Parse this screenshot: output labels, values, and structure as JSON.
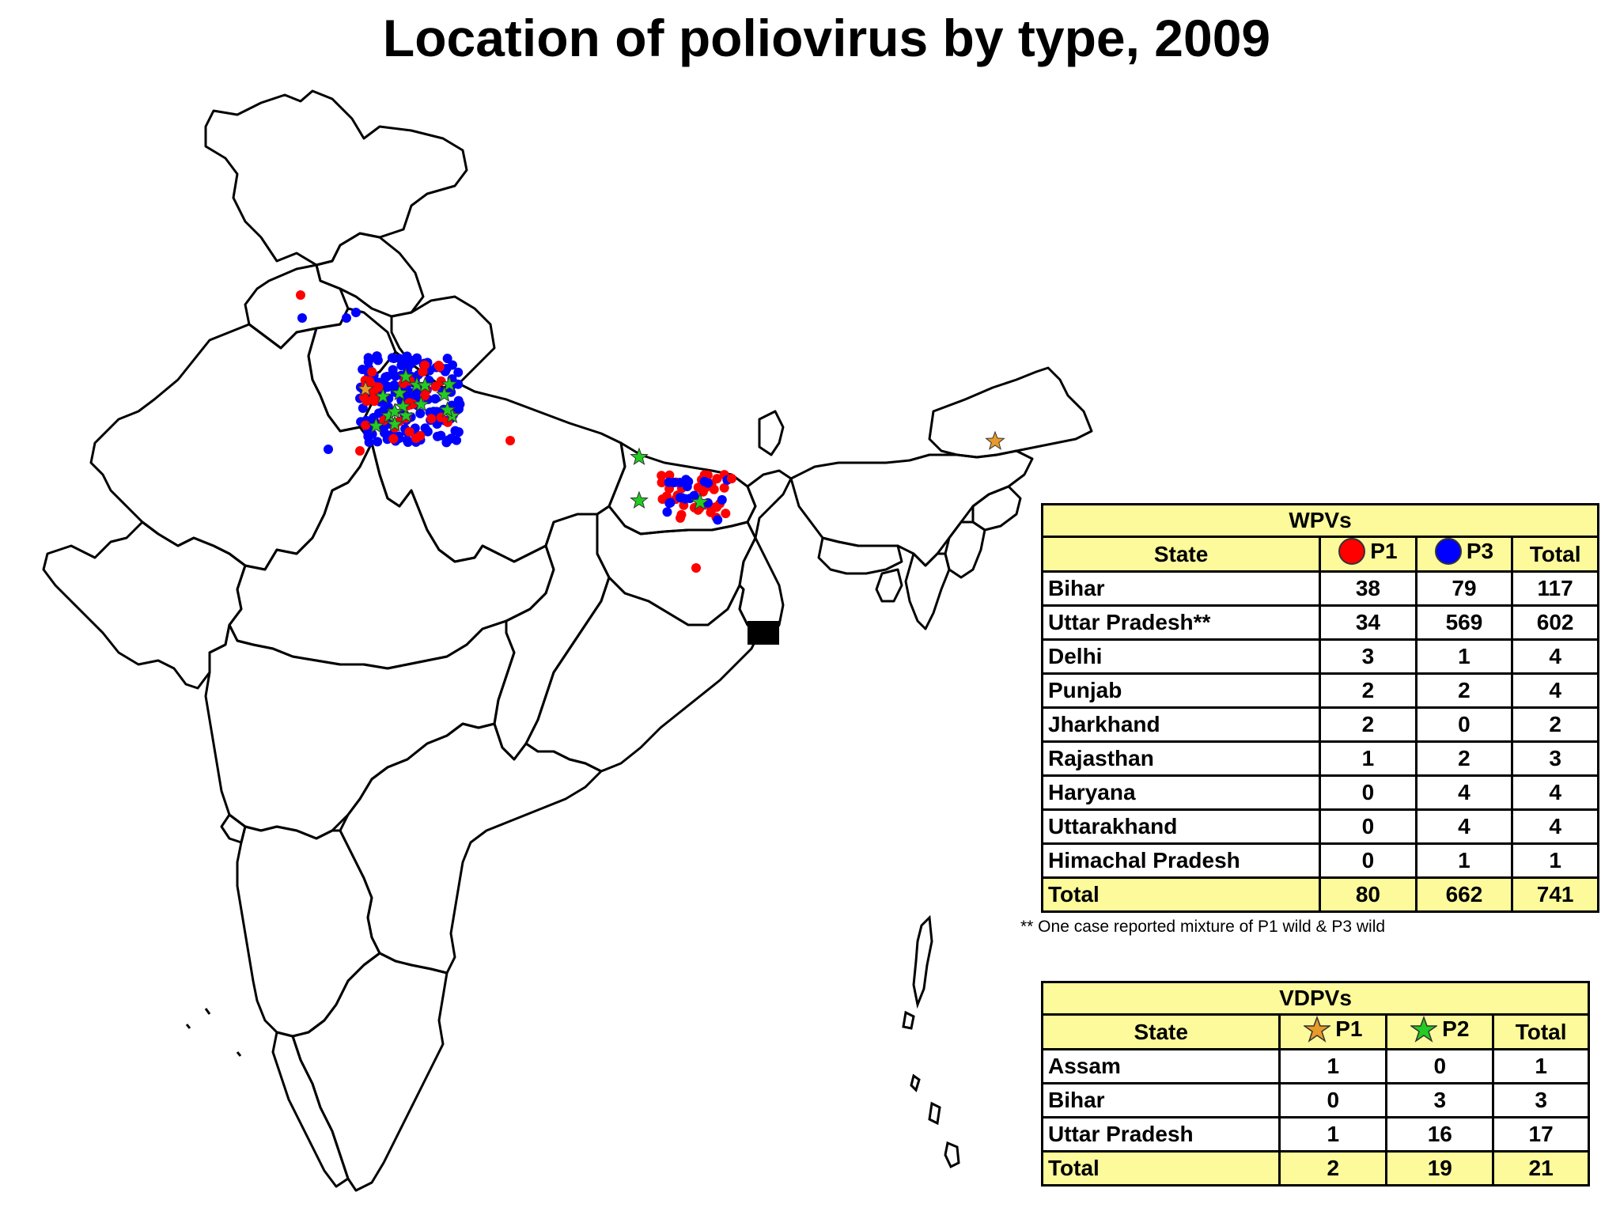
{
  "title": "Location of poliovirus by type, 2009",
  "colors": {
    "p1_wpv": "#ff0000",
    "p3_wpv": "#0000ff",
    "p1_vdpv": "#e89a2a",
    "p2_vdpv": "#22cc22",
    "table_header": "#fcfa9a"
  },
  "map": {
    "markers": {
      "p1_dot_icon": "red-circle",
      "p3_dot_icon": "blue-circle",
      "p1_vdpv_icon": "orange-star",
      "p2_vdpv_icon": "green-star"
    }
  },
  "wpvs": {
    "caption": "WPVs",
    "headers": [
      "State",
      "P1",
      "P3",
      "Total"
    ],
    "rows": [
      {
        "state": "Bihar",
        "p1": "38",
        "p3": "79",
        "total": "117"
      },
      {
        "state": "Uttar Pradesh**",
        "p1": "34",
        "p3": "569",
        "total": "602"
      },
      {
        "state": "Delhi",
        "p1": "3",
        "p3": "1",
        "total": "4"
      },
      {
        "state": "Punjab",
        "p1": "2",
        "p3": "2",
        "total": "4"
      },
      {
        "state": "Jharkhand",
        "p1": "2",
        "p3": "0",
        "total": "2"
      },
      {
        "state": "Rajasthan",
        "p1": "1",
        "p3": "2",
        "total": "3"
      },
      {
        "state": "Haryana",
        "p1": "0",
        "p3": "4",
        "total": "4"
      },
      {
        "state": "Uttarakhand",
        "p1": "0",
        "p3": "4",
        "total": "4"
      },
      {
        "state": "Himachal Pradesh",
        "p1": "0",
        "p3": "1",
        "total": "1"
      }
    ],
    "total": {
      "state": "Total",
      "p1": "80",
      "p3": "662",
      "total": "741"
    }
  },
  "footnote": "** One case reported mixture of P1 wild & P3 wild",
  "vdpvs": {
    "caption": "VDPVs",
    "headers": [
      "State",
      "P1",
      "P2",
      "Total"
    ],
    "rows": [
      {
        "state": "Assam",
        "p1": "1",
        "p2": "0",
        "total": "1"
      },
      {
        "state": "Bihar",
        "p1": "0",
        "p2": "3",
        "total": "3"
      },
      {
        "state": "Uttar Pradesh",
        "p1": "1",
        "p2": "16",
        "total": "17"
      }
    ],
    "total": {
      "state": "Total",
      "p1": "2",
      "p2": "19",
      "total": "21"
    }
  }
}
